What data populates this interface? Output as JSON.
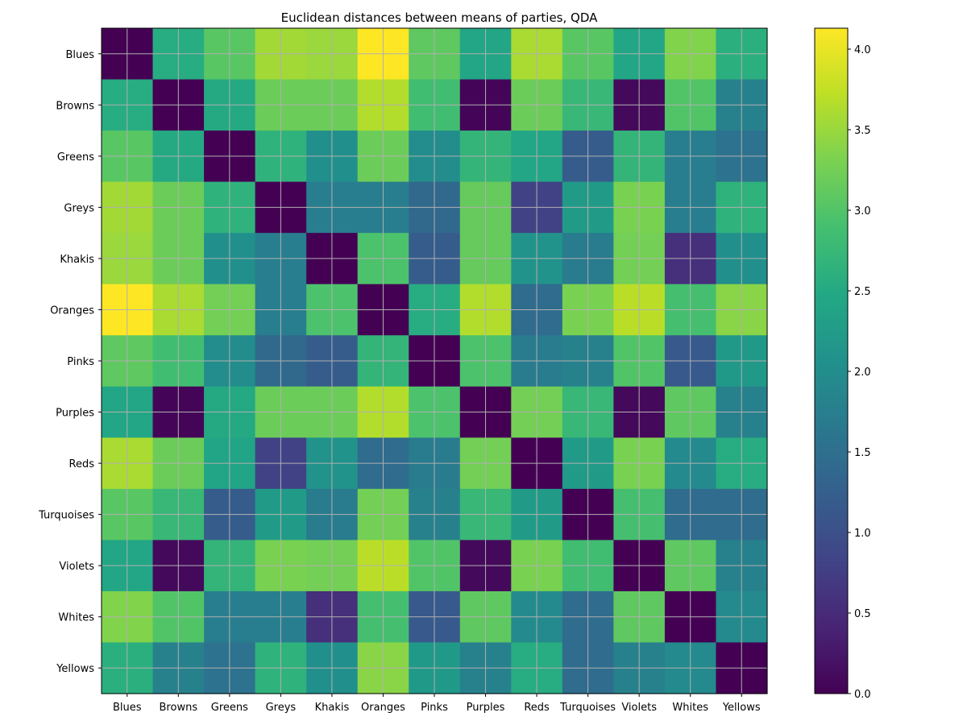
{
  "chart_data": {
    "type": "heatmap",
    "title": "Euclidean distances between means of parties, QDA",
    "xlabel": "",
    "ylabel": "",
    "categories": [
      "Blues",
      "Browns",
      "Greens",
      "Greys",
      "Khakis",
      "Oranges",
      "Pinks",
      "Purples",
      "Reds",
      "Turquoises",
      "Violets",
      "Whites",
      "Yellows"
    ],
    "colormap": "viridis",
    "grid": true,
    "colorbar": {
      "range": [
        0.0,
        4.13
      ],
      "ticks": [
        0.0,
        0.5,
        1.0,
        1.5,
        2.0,
        2.5,
        3.0,
        3.5,
        4.0
      ],
      "tick_labels": [
        "0.0",
        "0.5",
        "1.0",
        "1.5",
        "2.0",
        "2.5",
        "3.0",
        "3.5",
        "4.0"
      ]
    },
    "values": [
      [
        0.0,
        2.55,
        3.05,
        3.55,
        3.5,
        4.13,
        3.1,
        2.45,
        3.6,
        3.05,
        2.45,
        3.35,
        2.6
      ],
      [
        2.55,
        0.0,
        2.5,
        3.2,
        3.2,
        3.65,
        2.85,
        0.05,
        3.2,
        2.75,
        0.1,
        3.0,
        1.8
      ],
      [
        3.05,
        2.5,
        0.0,
        2.65,
        2.05,
        3.2,
        2.0,
        2.7,
        2.45,
        1.2,
        2.7,
        1.75,
        1.55
      ],
      [
        3.55,
        3.2,
        2.65,
        0.0,
        1.75,
        1.75,
        1.4,
        3.15,
        0.8,
        2.25,
        3.3,
        1.75,
        2.65
      ],
      [
        3.5,
        3.2,
        2.05,
        1.75,
        0.0,
        2.95,
        1.2,
        3.15,
        2.1,
        1.7,
        3.25,
        0.55,
        2.05
      ],
      [
        4.13,
        3.6,
        3.25,
        1.75,
        2.95,
        0.0,
        2.55,
        3.65,
        1.45,
        3.3,
        3.7,
        2.9,
        3.4
      ],
      [
        3.1,
        2.85,
        2.0,
        1.4,
        1.2,
        2.7,
        0.0,
        2.95,
        1.7,
        1.8,
        3.0,
        1.15,
        2.2
      ],
      [
        2.45,
        0.05,
        2.5,
        3.2,
        3.2,
        3.65,
        2.95,
        0.0,
        3.25,
        2.75,
        0.1,
        3.1,
        1.8
      ],
      [
        3.6,
        3.2,
        2.4,
        0.8,
        2.1,
        1.45,
        1.7,
        3.25,
        0.0,
        2.25,
        3.3,
        1.95,
        2.55
      ],
      [
        3.05,
        2.75,
        1.2,
        2.25,
        1.7,
        3.25,
        1.8,
        2.75,
        2.25,
        0.0,
        2.9,
        1.45,
        1.45
      ],
      [
        2.45,
        0.1,
        2.7,
        3.3,
        3.25,
        3.7,
        3.0,
        0.1,
        3.3,
        2.85,
        0.0,
        3.1,
        1.8
      ],
      [
        3.35,
        3.0,
        1.75,
        1.75,
        0.55,
        2.9,
        1.15,
        3.1,
        1.95,
        1.45,
        3.1,
        0.0,
        1.95
      ],
      [
        2.6,
        1.8,
        1.55,
        2.65,
        2.05,
        3.4,
        2.2,
        1.8,
        2.55,
        1.45,
        1.8,
        1.95,
        0.0
      ]
    ]
  }
}
